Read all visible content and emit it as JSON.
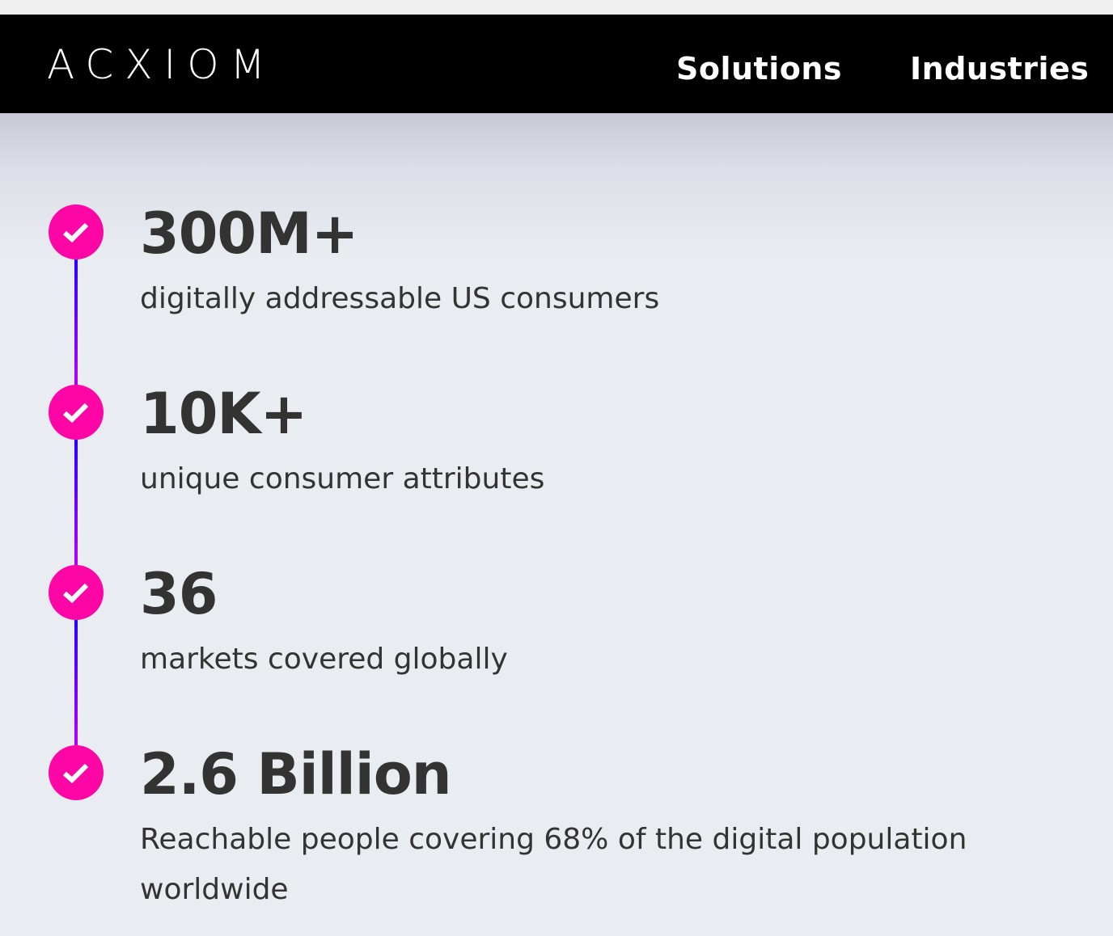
{
  "header": {
    "logo": "ACXIOM",
    "nav": [
      "Solutions",
      "Industries"
    ]
  },
  "colors": {
    "check_circle": "#fd06a6",
    "connector_top": "#2a00ff",
    "connector_bottom": "#b400ff",
    "header_bg": "#000000"
  },
  "stats": [
    {
      "value": "300M+",
      "label": "digitally addressable US consumers",
      "icon": "check-circle-icon"
    },
    {
      "value": "10K+",
      "label": "unique consumer attributes",
      "icon": "check-circle-icon"
    },
    {
      "value": "36",
      "label": "markets covered globally",
      "icon": "check-circle-icon"
    },
    {
      "value": "2.6 Billion",
      "label": "Reachable people covering 68% of the digital population worldwide",
      "icon": "check-circle-icon"
    }
  ]
}
